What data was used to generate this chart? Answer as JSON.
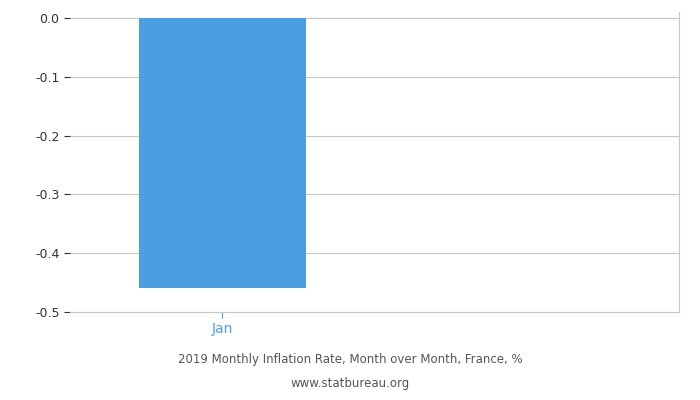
{
  "categories": [
    "Jan"
  ],
  "values": [
    -0.46
  ],
  "bar_color": "#4B9FE1",
  "title_line1": "2019 Monthly Inflation Rate, Month over Month, France, %",
  "title_line2": "www.statbureau.org",
  "title_color": "#555555",
  "xlabel_color": "#4B9FE1",
  "xlabel_fontsize": 10,
  "ylim": [
    -0.5,
    0.01
  ],
  "yticks": [
    0,
    -0.1,
    -0.2,
    -0.3,
    -0.4,
    -0.5
  ],
  "grid_color": "#c8c8c8",
  "background_color": "#ffffff",
  "bar_width": 0.55,
  "title_fontsize": 8.5,
  "tick_fontsize": 9,
  "xlim": [
    -0.5,
    1.5
  ]
}
